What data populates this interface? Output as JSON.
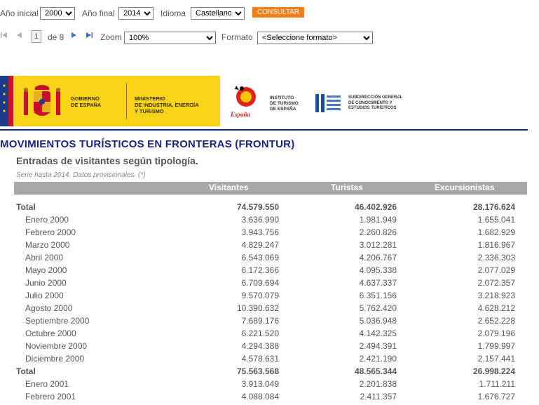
{
  "filters": {
    "ano_inicial_label": "Año inicial",
    "ano_inicial_value": "2000",
    "ano_final_label": "Año final",
    "ano_final_value": "2014",
    "idioma_label": "Idioma",
    "idioma_value": "Castellano",
    "consultar_label": "CONSULTAR"
  },
  "pager": {
    "current_page": "1",
    "of_label": "de 8",
    "zoom_label": "Zoom",
    "zoom_value": "100%",
    "formato_label": "Formato",
    "formato_value": "<Seleccione formato>"
  },
  "banner": {
    "gobierno_line1": "GOBIERNO",
    "gobierno_line2": "DE ESPAÑA",
    "ministerio_line1": "MINISTERIO",
    "ministerio_line2": "DE INDUSTRIA, ENERGÍA",
    "ministerio_line3": "Y TURISMO",
    "espana_logo_text": "España",
    "instituto_line1": "INSTITUTO",
    "instituto_line2": "DE TURISMO",
    "instituto_line3": "DE ESPAÑA",
    "subdireccion_line1": "SUBDIRECCIÓN GENERAL",
    "subdireccion_line2": "DE CONOCIMIENTO Y",
    "subdireccion_line3": "ESTUDIOS TURÍSTICOS",
    "colors": {
      "yellow": "#f7d417",
      "eu_blue": "#1b3a8a",
      "red": "#c8102e"
    }
  },
  "report": {
    "title": "MOVIMIENTOS TURÍSTICOS EN FRONTERAS (FRONTUR)",
    "subtitle": "Entradas de visitantes según tipología.",
    "note": "Serie hasta 2014. Datos provisionales. (*)",
    "columns": [
      "Visitantes",
      "Turistas",
      "Excursionistas"
    ],
    "rows": [
      {
        "label": "Total",
        "visitantes": "74.579.550",
        "turistas": "46.402.926",
        "excursionistas": "28.176.624",
        "total": true
      },
      {
        "label": "Enero 2000",
        "visitantes": "3.636.990",
        "turistas": "1.981.949",
        "excursionistas": "1.655.041",
        "total": false
      },
      {
        "label": "Febrero 2000",
        "visitantes": "3.943.756",
        "turistas": "2.260.826",
        "excursionistas": "1.682.929",
        "total": false
      },
      {
        "label": "Marzo 2000",
        "visitantes": "4.829.247",
        "turistas": "3.012.281",
        "excursionistas": "1.816.967",
        "total": false
      },
      {
        "label": "Abril 2000",
        "visitantes": "6.543.069",
        "turistas": "4.206.767",
        "excursionistas": "2.336.303",
        "total": false
      },
      {
        "label": "Mayo 2000",
        "visitantes": "6.172.366",
        "turistas": "4.095.338",
        "excursionistas": "2.077.029",
        "total": false
      },
      {
        "label": "Junio 2000",
        "visitantes": "6.709.694",
        "turistas": "4.637.337",
        "excursionistas": "2.072.357",
        "total": false
      },
      {
        "label": "Julio 2000",
        "visitantes": "9.570.079",
        "turistas": "6.351.156",
        "excursionistas": "3.218.923",
        "total": false
      },
      {
        "label": "Agosto 2000",
        "visitantes": "10.390.632",
        "turistas": "5.762.420",
        "excursionistas": "4.628.212",
        "total": false
      },
      {
        "label": "Septiembre 2000",
        "visitantes": "7.689.176",
        "turistas": "5.036.948",
        "excursionistas": "2.652.228",
        "total": false
      },
      {
        "label": "Octubre 2000",
        "visitantes": "6.221.520",
        "turistas": "4.142.325",
        "excursionistas": "2.079.196",
        "total": false
      },
      {
        "label": "Noviembre 2000",
        "visitantes": "4.294.388",
        "turistas": "2.494.391",
        "excursionistas": "1.799.997",
        "total": false
      },
      {
        "label": "Diciembre 2000",
        "visitantes": "4.578.631",
        "turistas": "2.421.190",
        "excursionistas": "2.157.441",
        "total": false
      },
      {
        "label": "Total",
        "visitantes": "75.563.568",
        "turistas": "48.565.344",
        "excursionistas": "26.998.224",
        "total": true
      },
      {
        "label": "Enero 2001",
        "visitantes": "3.913.049",
        "turistas": "2.201.838",
        "excursionistas": "1.711.211",
        "total": false
      },
      {
        "label": "Febrero 2001",
        "visitantes": "4.088.084",
        "turistas": "2.411.357",
        "excursionistas": "1.676.727",
        "total": false
      }
    ]
  }
}
